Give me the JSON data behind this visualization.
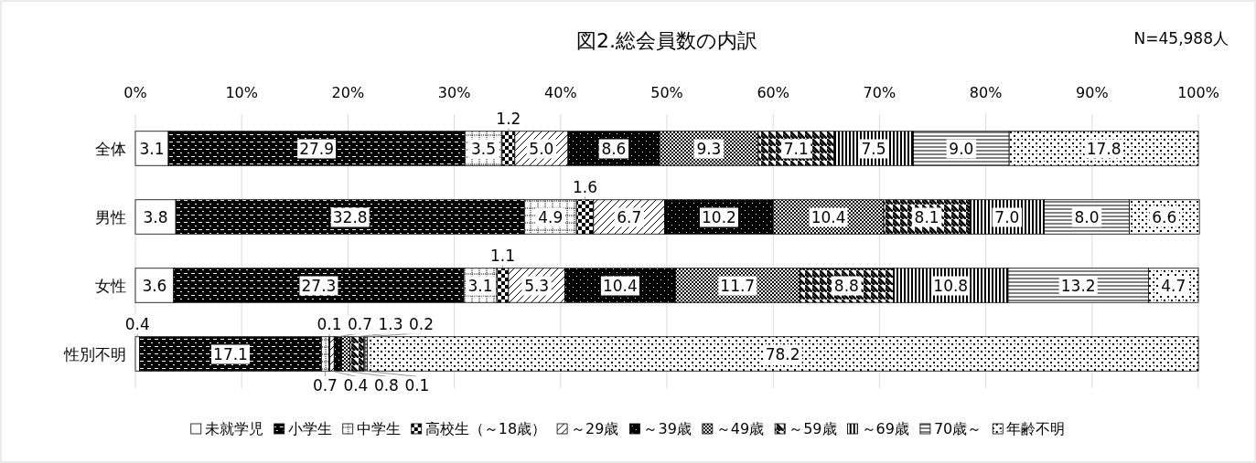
{
  "chart_data": {
    "type": "bar",
    "orientation": "horizontal",
    "stacked": true,
    "title": "図2.総会員数の内訳",
    "annotations": [
      "N=45,988人"
    ],
    "categories": [
      "全体",
      "男性",
      "女性",
      "性別不明"
    ],
    "xlim": [
      0,
      100
    ],
    "xticks": [
      {
        "value": 0,
        "label": "0%"
      },
      {
        "value": 10,
        "label": "10%"
      },
      {
        "value": 20,
        "label": "20%"
      },
      {
        "value": 30,
        "label": "30%"
      },
      {
        "value": 40,
        "label": "40%"
      },
      {
        "value": 50,
        "label": "50%"
      },
      {
        "value": 60,
        "label": "60%"
      },
      {
        "value": 70,
        "label": "70%"
      },
      {
        "value": 80,
        "label": "80%"
      },
      {
        "value": 90,
        "label": "90%"
      },
      {
        "value": 100,
        "label": "100%"
      }
    ],
    "grid": "x",
    "legend": "bottom",
    "series": [
      {
        "name": "未就学児",
        "color": "#000000",
        "values": [
          3.1,
          3.8,
          3.6,
          0.4
        ],
        "value_labels": [
          "3.1",
          "3.8",
          "3.6",
          "0.4"
        ]
      },
      {
        "name": "小学生",
        "color": "#000000",
        "values": [
          27.9,
          32.8,
          27.3,
          17.1
        ],
        "value_labels": [
          "27.9",
          "32.8",
          "27.3",
          "17.1"
        ]
      },
      {
        "name": "中学生",
        "color": "#000000",
        "values": [
          3.5,
          4.9,
          3.1,
          0.7
        ],
        "value_labels": [
          "3.5",
          "4.9",
          "3.1",
          "0.7"
        ]
      },
      {
        "name": "高校生（～18歳）",
        "color": "#000000",
        "values": [
          1.2,
          1.6,
          1.1,
          0.1
        ],
        "value_labels": [
          "1.2",
          "1.6",
          "1.1",
          "0.1"
        ]
      },
      {
        "name": "～29歳",
        "color": "#000000",
        "values": [
          5.0,
          6.7,
          5.3,
          0.4
        ],
        "value_labels": [
          "5.0",
          "6.7",
          "5.3",
          "0.4"
        ]
      },
      {
        "name": "～39歳",
        "color": "#000000",
        "values": [
          8.6,
          10.2,
          10.4,
          0.7
        ],
        "value_labels": [
          "8.6",
          "10.2",
          "10.4",
          "0.7"
        ]
      },
      {
        "name": "～49歳",
        "color": "#000000",
        "values": [
          9.3,
          10.4,
          11.7,
          0.8
        ],
        "value_labels": [
          "9.3",
          "10.4",
          "11.7",
          "0.8"
        ]
      },
      {
        "name": "～59歳",
        "color": "#000000",
        "values": [
          7.1,
          8.1,
          8.8,
          1.3
        ],
        "value_labels": [
          "7.1",
          "8.1",
          "8.8",
          "1.3"
        ]
      },
      {
        "name": "～69歳",
        "color": "#000000",
        "values": [
          7.5,
          7.0,
          10.8,
          0.1
        ],
        "value_labels": [
          "7.5",
          "7.0",
          "10.8",
          "0.1"
        ]
      },
      {
        "name": "70歳～",
        "color": "#000000",
        "values": [
          9.0,
          8.0,
          13.2,
          0.2
        ],
        "value_labels": [
          "9.0",
          "8.0",
          "13.2",
          "0.2"
        ]
      },
      {
        "name": "年齢不明",
        "color": "#000000",
        "values": [
          17.8,
          6.6,
          4.7,
          78.2
        ],
        "value_labels": [
          "17.8",
          "6.6",
          "4.7",
          "78.2"
        ]
      }
    ]
  }
}
